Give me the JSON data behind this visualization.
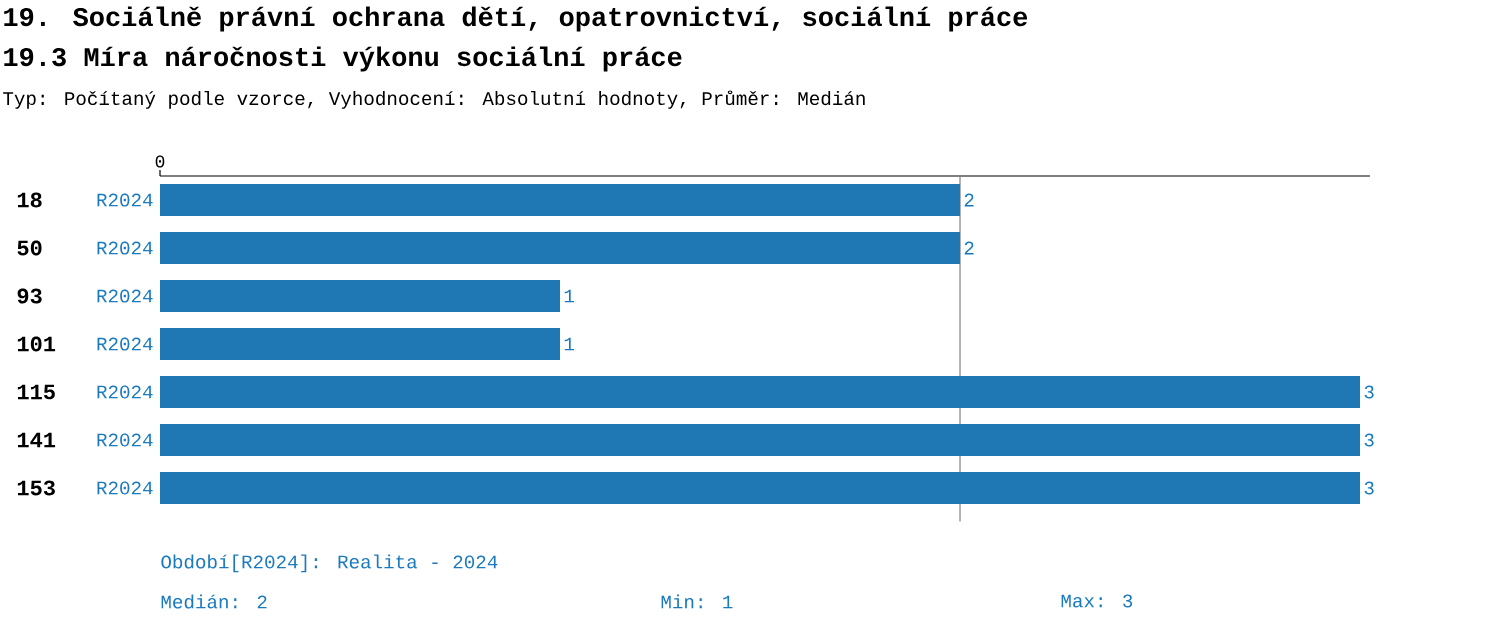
{
  "chart_data": {
    "type": "bar",
    "orientation": "horizontal",
    "title": "19. Sociálně právní ochrana dětí, opatrovnictví, sociální práce",
    "subtitle": "19.3 Míra náročnosti výkonu sociální práce",
    "annotations": [
      "Typ: Počítaný podle vzorce, Vyhodnocení: Absolutní hodnoty, Průměr: Medián",
      "Období[R2024]: Realita - 2024",
      "Medián: 2",
      "Min: 1",
      "Max: 3",
      "0"
    ],
    "categories": [
      "18",
      "50",
      "93",
      "101",
      "115",
      "141",
      "153"
    ],
    "series": [
      {
        "name": "R2024",
        "color": "#1f77b4",
        "values": [
          2,
          2,
          1,
          1,
          3,
          3,
          3
        ]
      }
    ],
    "xlim": [
      0,
      3.025
    ],
    "data_labels": true,
    "ref_lines": [
      {
        "axis": "x",
        "value": 2,
        "color": "#808080"
      }
    ]
  }
}
